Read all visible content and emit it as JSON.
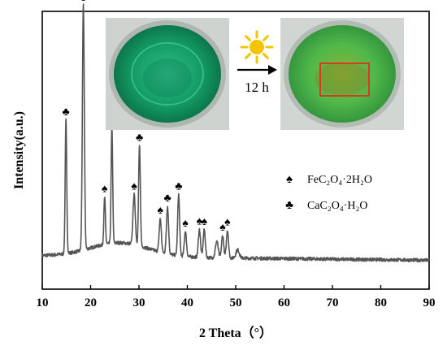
{
  "chart_data": {
    "type": "line",
    "xlabel": "2 Theta（°）",
    "ylabel": "Intensity(a.u.)",
    "xlim": [
      10,
      90
    ],
    "xticks": [
      "10",
      "20",
      "30",
      "40",
      "50",
      "60",
      "70",
      "80",
      "90"
    ],
    "y_ticks_shown": false,
    "grid": false,
    "line_color": "#555555",
    "baseline": 0.08,
    "baseline_slope": -0.0002,
    "noise_amplitude": 0.012,
    "peaks": [
      {
        "x": 14.9,
        "height": 0.48,
        "width": 0.16,
        "marker": "club"
      },
      {
        "x": 18.5,
        "height": 0.88,
        "width": 0.2,
        "marker": "spade"
      },
      {
        "x": 22.9,
        "height": 0.17,
        "width": 0.16,
        "marker": "spade"
      },
      {
        "x": 24.4,
        "height": 0.42,
        "width": 0.16,
        "marker": "club"
      },
      {
        "x": 29.0,
        "height": 0.18,
        "width": 0.24,
        "marker": "spade"
      },
      {
        "x": 30.1,
        "height": 0.36,
        "width": 0.18,
        "marker": "club"
      },
      {
        "x": 34.4,
        "height": 0.12,
        "width": 0.22,
        "marker": "spade"
      },
      {
        "x": 35.9,
        "height": 0.17,
        "width": 0.22,
        "marker": "club"
      },
      {
        "x": 38.2,
        "height": 0.22,
        "width": 0.2,
        "marker": "club"
      },
      {
        "x": 39.6,
        "height": 0.09,
        "width": 0.22,
        "marker": "spade"
      },
      {
        "x": 42.5,
        "height": 0.1,
        "width": 0.22,
        "marker": "spade"
      },
      {
        "x": 43.5,
        "height": 0.1,
        "width": 0.22,
        "marker": "spade"
      },
      {
        "x": 46.1,
        "height": 0.06,
        "width": 0.28,
        "marker": null
      },
      {
        "x": 47.3,
        "height": 0.08,
        "width": 0.22,
        "marker": "spade"
      },
      {
        "x": 48.3,
        "height": 0.1,
        "width": 0.22,
        "marker": "spade"
      },
      {
        "x": 50.4,
        "height": 0.03,
        "width": 0.35,
        "marker": null
      }
    ],
    "legend": [
      {
        "marker": "spade",
        "label": "FeC₂O₄·2H₂O"
      },
      {
        "marker": "club",
        "label": "CaC₂O₄·H₂O"
      }
    ],
    "legend_placement": "right"
  },
  "inset": {
    "arrow_label": "12 h",
    "sun_color": "#f5c400",
    "solution_before_color": "#1aa86e",
    "solution_after_color": "#4fb84a",
    "highlight_box_color": "#e03020"
  },
  "markers": {
    "spade": "♠",
    "club": "♣"
  }
}
